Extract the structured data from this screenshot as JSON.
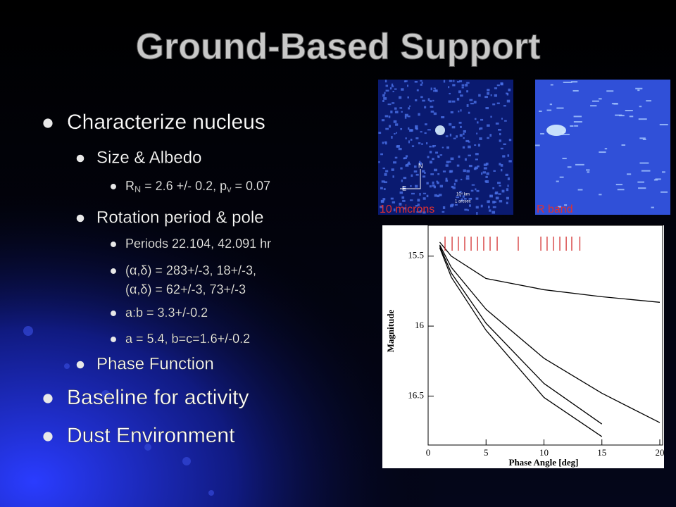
{
  "title": "Ground-Based Support",
  "bullets": [
    {
      "level": 1,
      "text": "Characterize nucleus"
    },
    {
      "level": 2,
      "text": "Size & Albedo"
    },
    {
      "level": 3,
      "parts": [
        "R",
        "N",
        " = 2.6 +/- 0.2, p",
        "v",
        " = 0.07"
      ]
    },
    {
      "level": 2,
      "text": "Rotation period & pole"
    },
    {
      "level": 3,
      "text": "Periods 22.104, 42.091 hr"
    },
    {
      "level": 3,
      "lines": [
        "(α,δ) = 283+/-3, 18+/-3,",
        "(α,δ) =   62+/-3, 73+/-3"
      ]
    },
    {
      "level": 3,
      "text": "a:b = 3.3+/-0.2"
    },
    {
      "level": 3,
      "text": "a = 5.4, b=c=1.6+/-0.2"
    },
    {
      "level": 2,
      "text": "Phase Function"
    },
    {
      "level": 1,
      "text": "Baseline for activity"
    },
    {
      "level": 1,
      "text": "Dust Environment"
    }
  ],
  "images": [
    {
      "caption": "10 microns",
      "labels": [
        "N",
        "E",
        "10⁴ km",
        "1 arcsec"
      ]
    },
    {
      "caption": "R band"
    }
  ],
  "chart_data": {
    "type": "line",
    "xlabel": "Phase Angle [deg]",
    "ylabel": "Magnitude",
    "x": [
      1,
      2,
      5,
      10,
      15,
      20
    ],
    "series": [
      {
        "color": "#000000",
        "values": [
          15.4,
          15.5,
          15.66,
          15.74,
          15.79,
          15.83
        ]
      },
      {
        "color": "#000000",
        "values": [
          15.42,
          15.58,
          15.88,
          16.23,
          16.48,
          16.69
        ]
      },
      {
        "color": "#000000",
        "values": [
          15.43,
          15.62,
          15.98,
          16.41,
          16.7,
          null
        ]
      },
      {
        "color": "#000000",
        "values": [
          15.44,
          15.65,
          16.03,
          16.51,
          16.79,
          null
        ]
      }
    ],
    "obs_x": [
      1.46,
      2.07,
      2.61,
      3.16,
      3.71,
      4.26,
      4.8,
      5.35,
      5.96,
      7.78,
      9.73,
      10.27,
      10.82,
      11.37,
      11.92,
      12.4,
      13.1
    ],
    "obs_color": "#d02020",
    "xlim": [
      0,
      20
    ],
    "ylim": [
      15.3,
      16.85
    ],
    "y_inverted": true,
    "xticks": [
      0,
      5,
      10,
      15,
      20
    ],
    "yticks": [
      15.5,
      16,
      16.5
    ]
  }
}
